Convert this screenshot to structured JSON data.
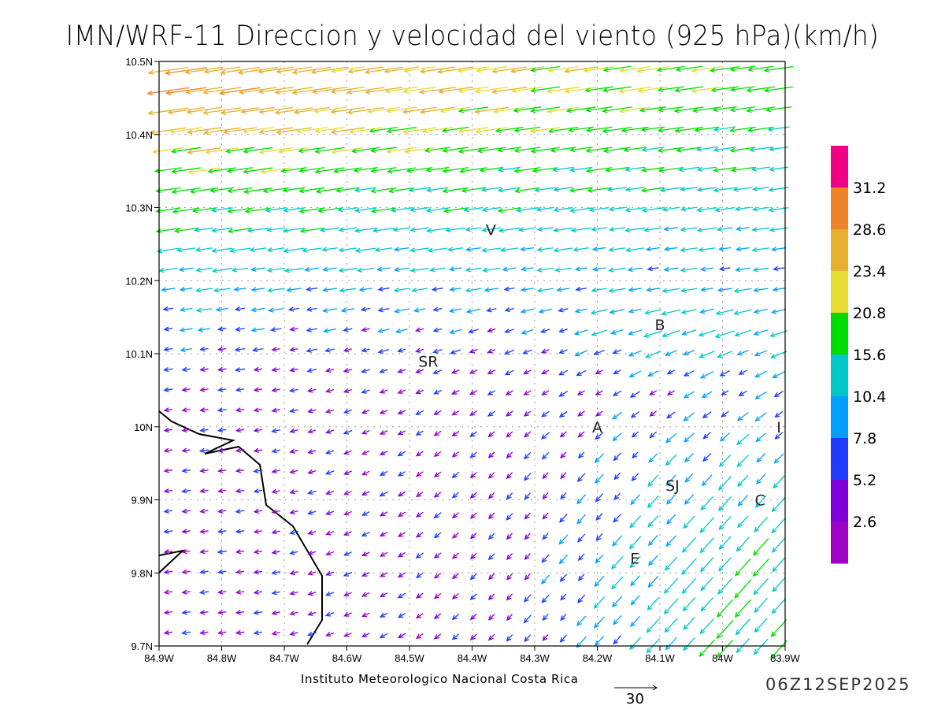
{
  "title": "IMN/WRF-11 Direccion y velocidad del viento (925 hPa)(km/h)",
  "footer": {
    "institution": "Instituto Meteorologico Nacional Costa Rica",
    "scale_value": "30",
    "datetime": "06Z12SEP2025"
  },
  "map": {
    "lon_range": [
      -84.9,
      -83.9
    ],
    "lat_range": [
      9.7,
      10.5
    ],
    "x_ticks": [
      "84.9W",
      "84.8W",
      "84.7W",
      "84.6W",
      "84.5W",
      "84.4W",
      "84.3W",
      "84.2W",
      "84.1W",
      "84W",
      "83.9W"
    ],
    "y_ticks": [
      "10.5N",
      "10.4N",
      "10.3N",
      "10.2N",
      "10.1N",
      "10N",
      "9.9N",
      "9.8N",
      "9.7N"
    ],
    "places": [
      {
        "label": "V",
        "lon": -84.37,
        "lat": 10.27
      },
      {
        "label": "B",
        "lon": -84.1,
        "lat": 10.14
      },
      {
        "label": "SR",
        "lon": -84.47,
        "lat": 10.09
      },
      {
        "label": "A",
        "lon": -84.2,
        "lat": 10.0
      },
      {
        "label": "I",
        "lon": -83.91,
        "lat": 10.0
      },
      {
        "label": "SJ",
        "lon": -84.08,
        "lat": 9.92
      },
      {
        "label": "C",
        "lon": -83.94,
        "lat": 9.9
      },
      {
        "label": "E",
        "lon": -84.14,
        "lat": 9.82
      }
    ]
  },
  "colorbar": {
    "labels": [
      "31.2",
      "28.6",
      "23.4",
      "20.8",
      "15.6",
      "10.4",
      "7.8",
      "5.2",
      "2.6"
    ],
    "thresholds": [
      2.6,
      5.2,
      7.8,
      10.4,
      15.6,
      20.8,
      23.4,
      28.6,
      31.2
    ],
    "colors": [
      "#a000c8",
      "#8200dc",
      "#1e3cff",
      "#00a0ff",
      "#00c8c8",
      "#00dc00",
      "#e6dc32",
      "#e6af2d",
      "#f08228",
      "#f00082"
    ]
  }
}
